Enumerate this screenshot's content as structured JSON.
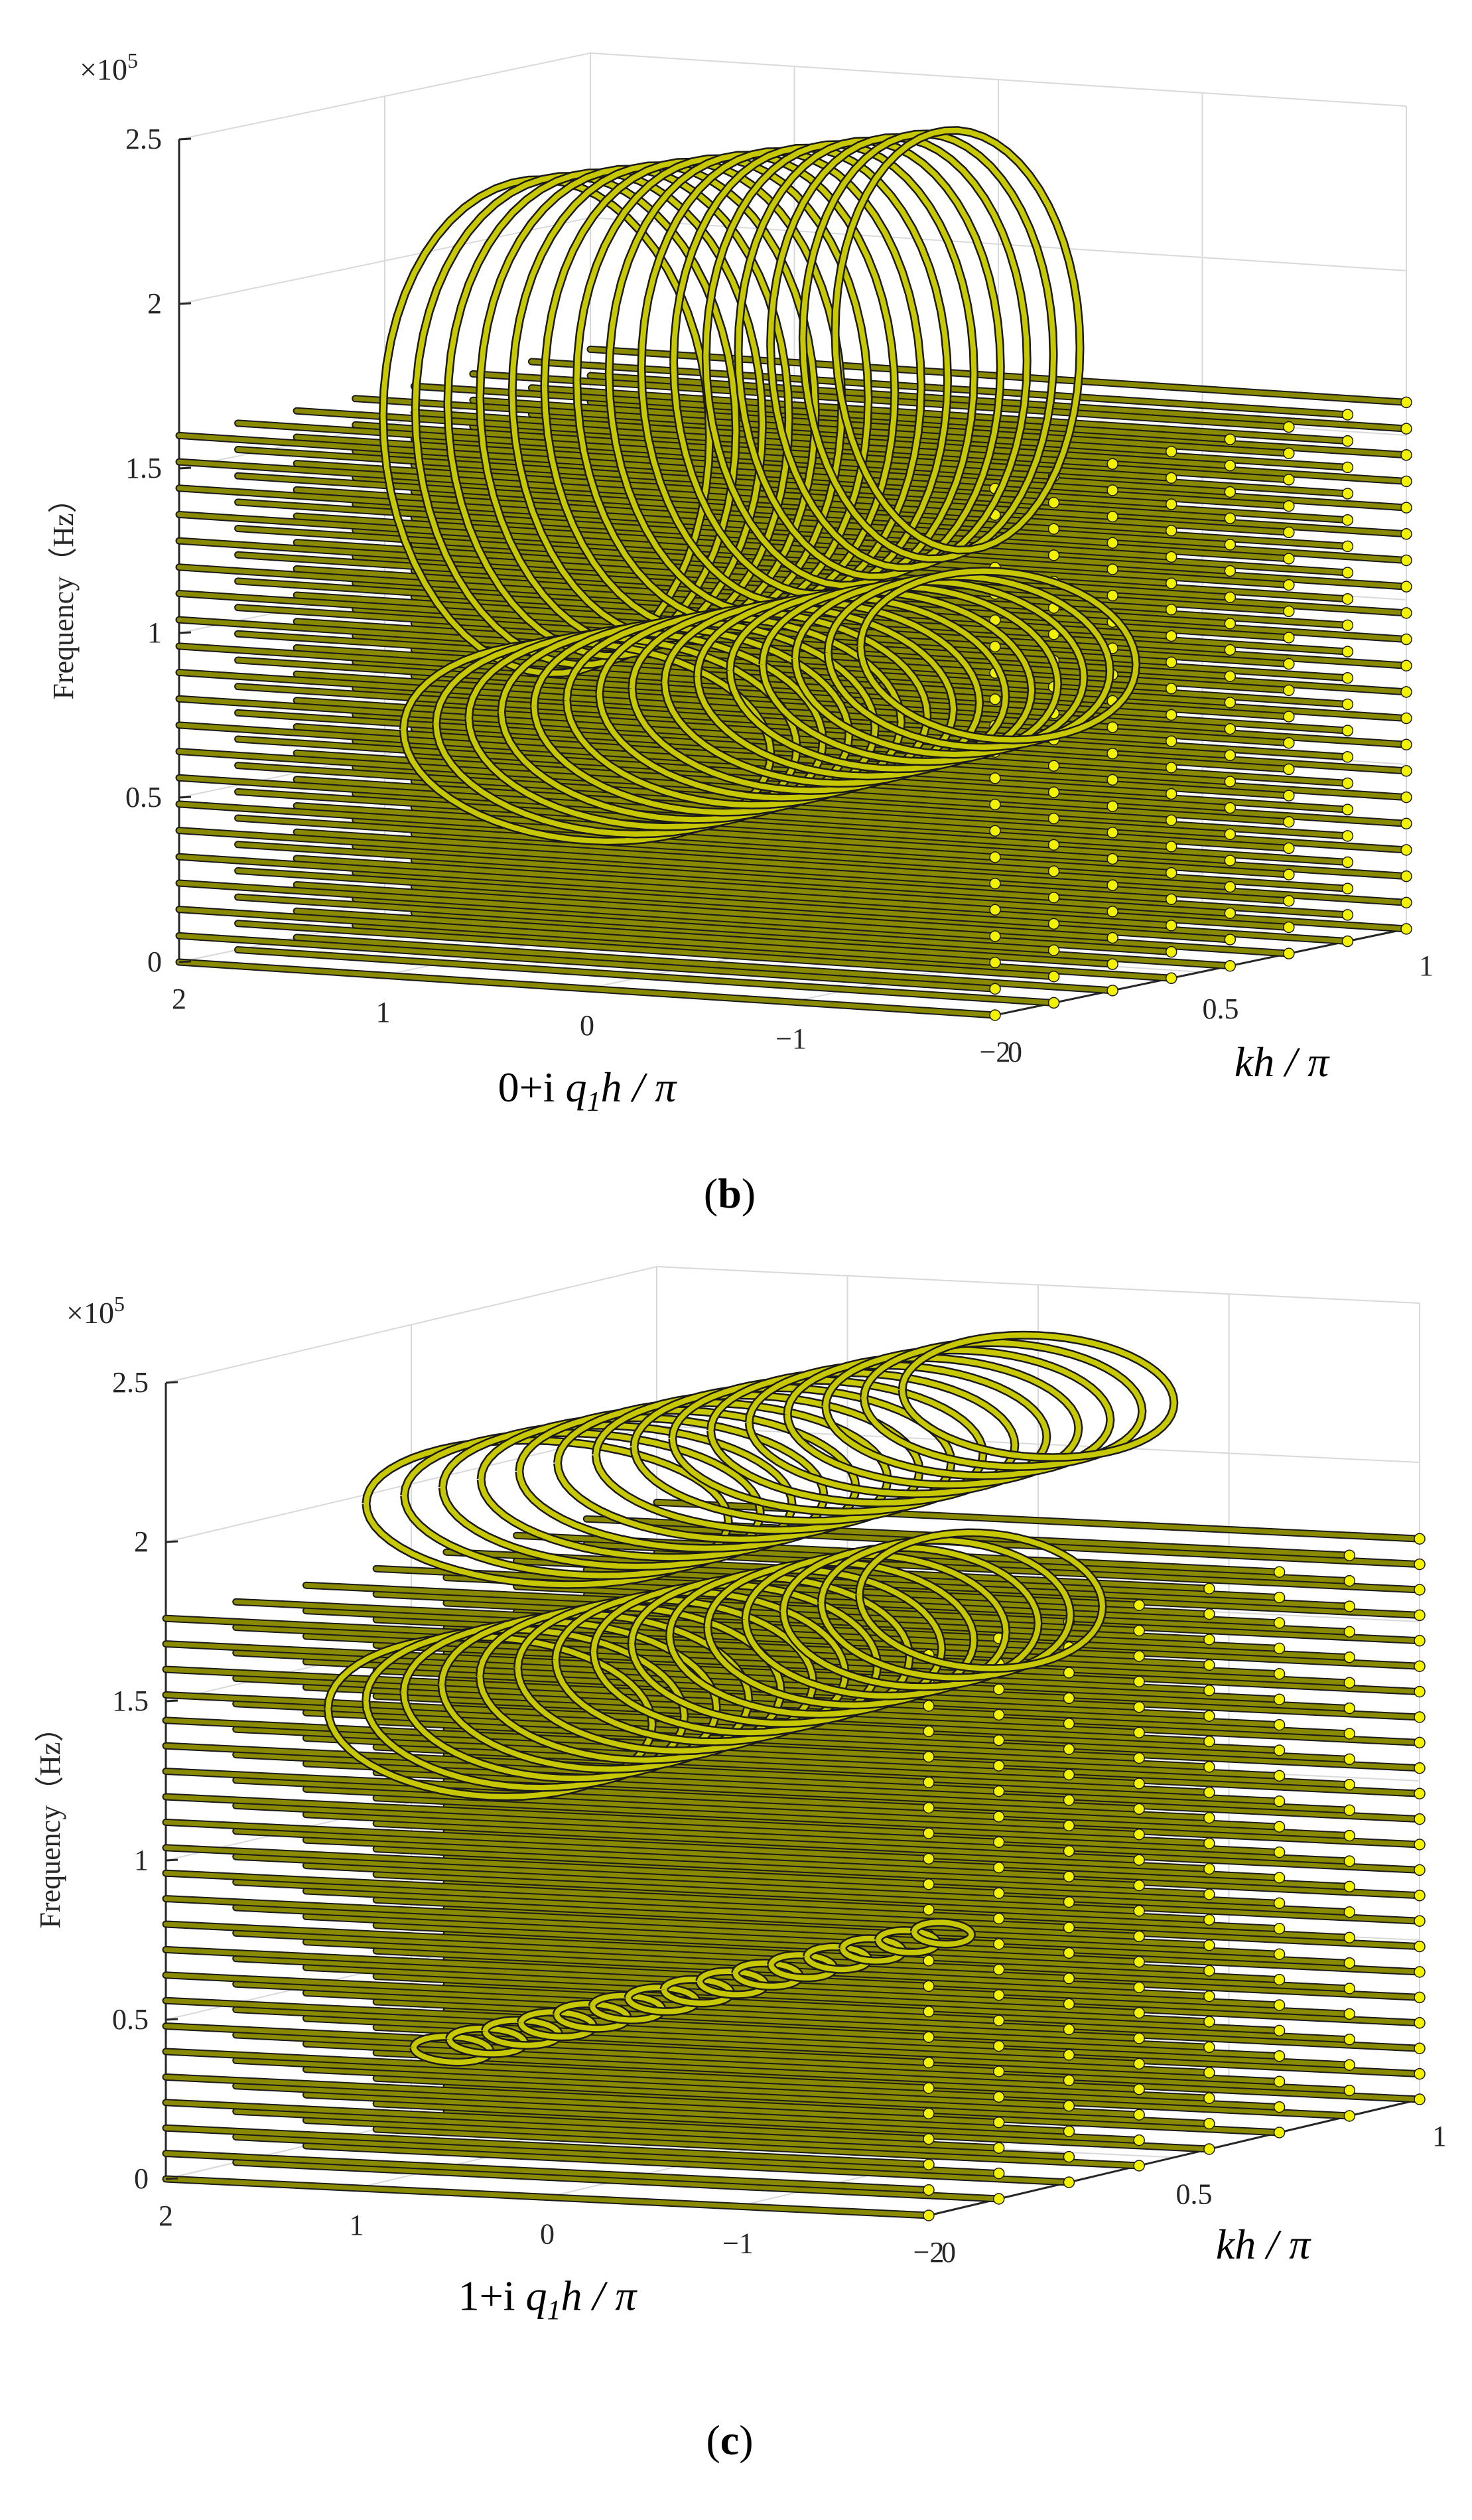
{
  "chart_data": [
    {
      "type": "scatter",
      "subtitle_letter": "b",
      "exponent_label": "×10",
      "exponent_power": "5",
      "ylabel": "Frequency（Hz）",
      "z_ticks": [
        "0",
        "0.5",
        "1",
        "1.5",
        "2",
        "2.5"
      ],
      "z_range": [
        0,
        250000
      ],
      "x_ticks": [
        "2",
        "1",
        "0",
        "−1",
        "−2"
      ],
      "x_range": [
        -2,
        2
      ],
      "y_ticks": [
        "0",
        "0.5",
        "1"
      ],
      "y_range": [
        0,
        1
      ],
      "xlabel": "0+i q₁h / π",
      "xlabel_parts": {
        "prefix": "0+i ",
        "var": "q",
        "sub": "1",
        "rest": "h / π"
      },
      "ylabel_k": "kh / π",
      "grid": true,
      "marker_color": "#f2f200",
      "edge_color": "#1a1a1a",
      "flat_band_levels": [
        0,
        8000,
        16000,
        24000,
        32000,
        40000,
        48000,
        56000,
        64000,
        72000,
        80000,
        88000,
        96000,
        104000,
        112000,
        120000,
        128000,
        136000,
        144000,
        152000,
        160000
      ],
      "loop_shapes": [
        {
          "center_q": 0.2,
          "center_f": 170000,
          "width_q": 1.6,
          "height_f": 150000
        },
        {
          "center_q": 0.0,
          "center_f": 75000,
          "width_q": 1.8,
          "height_f": 60000
        }
      ]
    },
    {
      "type": "scatter",
      "subtitle_letter": "c",
      "exponent_label": "×10",
      "exponent_power": "5",
      "ylabel": "Frequency（Hz）",
      "z_ticks": [
        "0",
        "0.5",
        "1",
        "1.5",
        "2",
        "2.5"
      ],
      "z_range": [
        0,
        250000
      ],
      "x_ticks": [
        "2",
        "1",
        "0",
        "−1",
        "−2"
      ],
      "x_range": [
        -2,
        2
      ],
      "y_ticks": [
        "0",
        "0.5",
        "1"
      ],
      "y_range": [
        0,
        1
      ],
      "xlabel": "1+i q₁h / π",
      "xlabel_parts": {
        "prefix": "1+i ",
        "var": "q",
        "sub": "1",
        "rest": "h / π"
      },
      "ylabel_k": "kh / π",
      "grid": true,
      "marker_color": "#f2f200",
      "edge_color": "#1a1a1a",
      "flat_band_levels": [
        0,
        8000,
        16000,
        24000,
        32000,
        40000,
        48000,
        56000,
        64000,
        72000,
        80000,
        88000,
        96000,
        104000,
        112000,
        120000,
        128000,
        136000,
        144000,
        152000,
        160000,
        168000,
        176000
      ],
      "loop_shapes": [
        {
          "center_q": 0.0,
          "center_f": 215000,
          "width_q": 1.9,
          "height_f": 45000
        },
        {
          "center_q": 0.3,
          "center_f": 150000,
          "width_q": 1.7,
          "height_f": 50000
        },
        {
          "center_q": 0.5,
          "center_f": 45000,
          "width_q": 0.4,
          "height_f": 8000
        }
      ]
    }
  ]
}
